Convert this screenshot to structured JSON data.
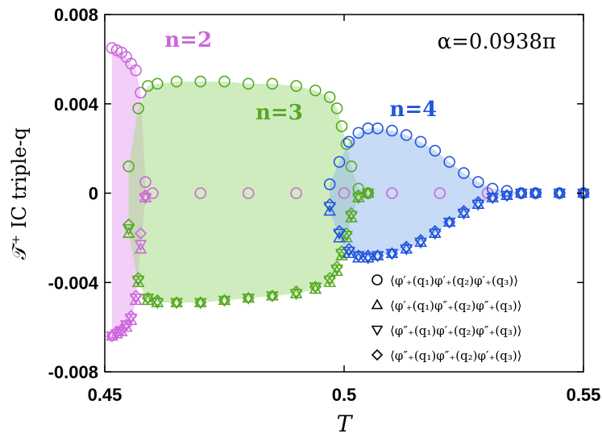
{
  "chart_data": {
    "type": "scatter",
    "title": "",
    "xlabel": "T",
    "ylabel": "𝒯⁺  IC triple-q",
    "xlim": [
      0.45,
      0.55
    ],
    "ylim": [
      -0.008,
      0.008
    ],
    "x_ticks": [
      "0.45",
      "0.5",
      "0.55"
    ],
    "y_ticks": [
      "0.008",
      "0.004",
      "0",
      "-0.004",
      "-0.008"
    ],
    "annotation": "α=0.0938π",
    "grid": false,
    "legend_position": "bottom-right",
    "legend": [
      {
        "marker": "circle",
        "label": "⟨φ′₊(q₁)φ′₊(q₂)φ′₊(q₃)⟩"
      },
      {
        "marker": "triangle-up",
        "label": "⟨φ′₊(q₁)φ″₊(q₂)φ″₊(q₃)⟩"
      },
      {
        "marker": "triangle-down",
        "label": "⟨φ″₊(q₁)φ′₊(q₂)φ″₊(q₃)⟩"
      },
      {
        "marker": "diamond",
        "label": "⟨φ″₊(q₁)φ″₊(q₂)φ′₊(q₃)⟩"
      }
    ],
    "groups": [
      {
        "label": "n=2",
        "color": "#cc66dd",
        "shade": "#e6a8ee",
        "label_pos": [
          0.4625,
          0.00655
        ],
        "series": [
          {
            "marker": "circle",
            "x": [
              0.4515,
              0.4525,
              0.4535,
              0.4545,
              0.4555,
              0.4565,
              0.4575,
              0.4585
            ],
            "y": [
              0.0065,
              0.0064,
              0.0063,
              0.0061,
              0.0058,
              0.0055,
              0.0045,
              0.0005
            ]
          },
          {
            "marker": "triangle-up",
            "x": [
              0.4515,
              0.4525,
              0.4535,
              0.4545,
              0.4555,
              0.4565,
              0.4575,
              0.4585
            ],
            "y": [
              -0.0064,
              -0.0063,
              -0.0062,
              -0.006,
              -0.0057,
              -0.0048,
              -0.0025,
              -0.0002
            ]
          },
          {
            "marker": "triangle-down",
            "x": [
              0.4515,
              0.4525,
              0.4535,
              0.4545,
              0.4555,
              0.4565,
              0.4575,
              0.4585
            ],
            "y": [
              -0.0064,
              -0.0063,
              -0.0062,
              -0.0059,
              -0.0056,
              -0.0047,
              -0.0023,
              -0.0002
            ]
          },
          {
            "marker": "diamond",
            "x": [
              0.4515,
              0.4525,
              0.4535,
              0.4545,
              0.4555,
              0.4565,
              0.4575,
              0.4585
            ],
            "y": [
              -0.0064,
              -0.0062,
              -0.0061,
              -0.0059,
              -0.0055,
              -0.0046,
              -0.0018,
              -0.0001
            ]
          },
          {
            "marker": "circle",
            "x": [
              0.46,
              0.47,
              0.48,
              0.49,
              0.5,
              0.51,
              0.52,
              0.53,
              0.54,
              0.55
            ],
            "y": [
              0,
              0,
              0,
              0,
              0,
              0,
              0,
              0,
              0,
              0
            ]
          }
        ]
      },
      {
        "label": "n=3",
        "color": "#55aa22",
        "shade": "#a8dd88",
        "label_pos": [
          0.4815,
          0.0033
        ],
        "series": [
          {
            "marker": "circle",
            "x": [
              0.455,
              0.457,
              0.459,
              0.461,
              0.465,
              0.47,
              0.475,
              0.48,
              0.485,
              0.49,
              0.494,
              0.497,
              0.4985,
              0.4995,
              0.5005,
              0.5015,
              0.503,
              0.505
            ],
            "y": [
              0.0012,
              0.0038,
              0.0048,
              0.0049,
              0.005,
              0.005,
              0.005,
              0.0049,
              0.0049,
              0.0048,
              0.0046,
              0.0043,
              0.0038,
              0.003,
              0.0022,
              0.0012,
              0.0002,
              0
            ]
          },
          {
            "marker": "triangle-up",
            "x": [
              0.455,
              0.457,
              0.459,
              0.461,
              0.465,
              0.47,
              0.475,
              0.48,
              0.485,
              0.49,
              0.494,
              0.497,
              0.4985,
              0.4995,
              0.5005,
              0.5015,
              0.503,
              0.505
            ],
            "y": [
              -0.0018,
              -0.004,
              -0.0048,
              -0.0049,
              -0.0049,
              -0.0049,
              -0.0048,
              -0.0047,
              -0.0046,
              -0.0045,
              -0.0043,
              -0.004,
              -0.0035,
              -0.0028,
              -0.002,
              -0.0011,
              -0.0002,
              0
            ]
          },
          {
            "marker": "triangle-down",
            "x": [
              0.455,
              0.457,
              0.459,
              0.461,
              0.465,
              0.47,
              0.475,
              0.48,
              0.485,
              0.49,
              0.494,
              0.497,
              0.4985,
              0.4995,
              0.5005,
              0.5015,
              0.503,
              0.505
            ],
            "y": [
              -0.0016,
              -0.0039,
              -0.0047,
              -0.0049,
              -0.0049,
              -0.0049,
              -0.0048,
              -0.0047,
              -0.0046,
              -0.0045,
              -0.0042,
              -0.0039,
              -0.0034,
              -0.0027,
              -0.0019,
              -0.001,
              -0.0002,
              0
            ]
          },
          {
            "marker": "diamond",
            "x": [
              0.455,
              0.457,
              0.459,
              0.461,
              0.465,
              0.47,
              0.475,
              0.48,
              0.485,
              0.49,
              0.494,
              0.497,
              0.4985,
              0.4995,
              0.5005,
              0.5015,
              0.503,
              0.505
            ],
            "y": [
              -0.0014,
              -0.0038,
              -0.0047,
              -0.0048,
              -0.0049,
              -0.0049,
              -0.0048,
              -0.0047,
              -0.0046,
              -0.0044,
              -0.0042,
              -0.0038,
              -0.0033,
              -0.0026,
              -0.0018,
              -0.0009,
              -0.0001,
              0
            ]
          }
        ]
      },
      {
        "label": "n=4",
        "color": "#2255dd",
        "shade": "#99bbee",
        "label_pos": [
          0.5095,
          0.00345
        ],
        "series": [
          {
            "marker": "circle",
            "x": [
              0.497,
              0.499,
              0.501,
              0.503,
              0.505,
              0.507,
              0.51,
              0.513,
              0.516,
              0.519,
              0.522,
              0.525,
              0.528,
              0.531,
              0.534,
              0.537,
              0.54,
              0.545,
              0.55
            ],
            "y": [
              0.0004,
              0.0014,
              0.0023,
              0.0027,
              0.0029,
              0.0029,
              0.0028,
              0.0026,
              0.0023,
              0.0019,
              0.0014,
              0.0009,
              0.0005,
              0.0002,
              0.0001,
              0,
              0,
              0,
              0
            ]
          },
          {
            "marker": "triangle-up",
            "x": [
              0.497,
              0.499,
              0.501,
              0.503,
              0.505,
              0.507,
              0.51,
              0.513,
              0.516,
              0.519,
              0.522,
              0.525,
              0.528,
              0.531,
              0.534,
              0.537,
              0.54,
              0.545,
              0.55
            ],
            "y": [
              -0.0008,
              -0.002,
              -0.0027,
              -0.0029,
              -0.0029,
              -0.0028,
              -0.0027,
              -0.0025,
              -0.0022,
              -0.0018,
              -0.0013,
              -0.0009,
              -0.0005,
              -0.0002,
              -0.0001,
              0,
              0,
              0,
              0
            ]
          },
          {
            "marker": "triangle-down",
            "x": [
              0.497,
              0.499,
              0.501,
              0.503,
              0.505,
              0.507,
              0.51,
              0.513,
              0.516,
              0.519,
              0.522,
              0.525,
              0.528,
              0.531,
              0.534,
              0.537,
              0.54,
              0.545,
              0.55
            ],
            "y": [
              -0.0006,
              -0.0018,
              -0.0026,
              -0.0028,
              -0.0029,
              -0.0028,
              -0.0027,
              -0.0025,
              -0.0022,
              -0.0018,
              -0.0013,
              -0.0009,
              -0.0005,
              -0.0002,
              -0.0001,
              0,
              0,
              0,
              0
            ]
          },
          {
            "marker": "diamond",
            "x": [
              0.497,
              0.499,
              0.501,
              0.503,
              0.505,
              0.507,
              0.51,
              0.513,
              0.516,
              0.519,
              0.522,
              0.525,
              0.528,
              0.531,
              0.534,
              0.537,
              0.54,
              0.545,
              0.55
            ],
            "y": [
              -0.0005,
              -0.0017,
              -0.0025,
              -0.0028,
              -0.0028,
              -0.0028,
              -0.0027,
              -0.0024,
              -0.0021,
              -0.0017,
              -0.0013,
              -0.0008,
              -0.0004,
              -0.0002,
              -0.0001,
              0,
              0,
              0,
              0
            ]
          }
        ]
      }
    ]
  }
}
